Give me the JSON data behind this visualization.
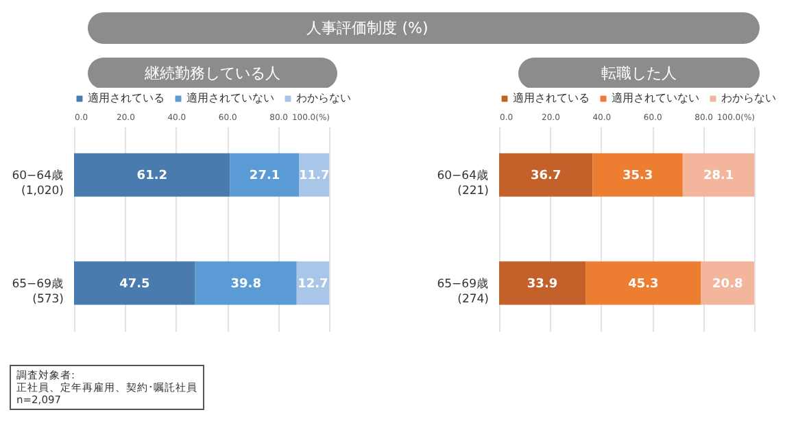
{
  "chart_data": [
    {
      "type": "bar",
      "orientation": "horizontal",
      "stacked": true,
      "title": "人事評価制度 (%)",
      "subtitle": "継続勤務している人",
      "categories": [
        "60−64歳\n(1,020)",
        "65−69歳\n(573)"
      ],
      "series": [
        {
          "name": "適用されている",
          "color": "#4a7bae",
          "values": [
            61.2,
            47.5
          ]
        },
        {
          "name": "適用されていない",
          "color": "#5b9bd5",
          "values": [
            27.1,
            39.8
          ]
        },
        {
          "name": "わからない",
          "color": "#a9c5e8",
          "values": [
            11.7,
            12.7
          ]
        }
      ],
      "xlim": [
        0,
        100
      ],
      "xticks": [
        {
          "value": 0,
          "label": "0.0"
        },
        {
          "value": 20,
          "label": "20.0"
        },
        {
          "value": 40,
          "label": "40.0"
        },
        {
          "value": 60,
          "label": "60.0"
        },
        {
          "value": 80,
          "label": "80.0"
        },
        {
          "value": 100,
          "label": "100.0(%)"
        }
      ],
      "grid": "x",
      "legend": "top",
      "data_labels": true,
      "annotations": [
        "調査対象者:\n正社員、定年再雇用、契約･嘱託社員\nn=2,097"
      ]
    },
    {
      "type": "bar",
      "orientation": "horizontal",
      "stacked": true,
      "subtitle": "転職した人",
      "categories": [
        "60−64歳\n(221)",
        "65−69歳\n(274)"
      ],
      "series": [
        {
          "name": "適用されている",
          "color": "#c4612b",
          "values": [
            36.7,
            33.9
          ]
        },
        {
          "name": "適用されていない",
          "color": "#ed7d31",
          "values": [
            35.3,
            45.3
          ]
        },
        {
          "name": "わからない",
          "color": "#f4b59d",
          "values": [
            28.1,
            20.8
          ]
        }
      ],
      "xlim": [
        0,
        100
      ],
      "xticks": [
        {
          "value": 0,
          "label": "0.0"
        },
        {
          "value": 20,
          "label": "20.0"
        },
        {
          "value": 40,
          "label": "40.0"
        },
        {
          "value": 60,
          "label": "60.0"
        },
        {
          "value": 80,
          "label": "80.0"
        },
        {
          "value": 100,
          "label": "100.0(%)"
        }
      ],
      "grid": "x",
      "legend": "top",
      "data_labels": true
    }
  ]
}
